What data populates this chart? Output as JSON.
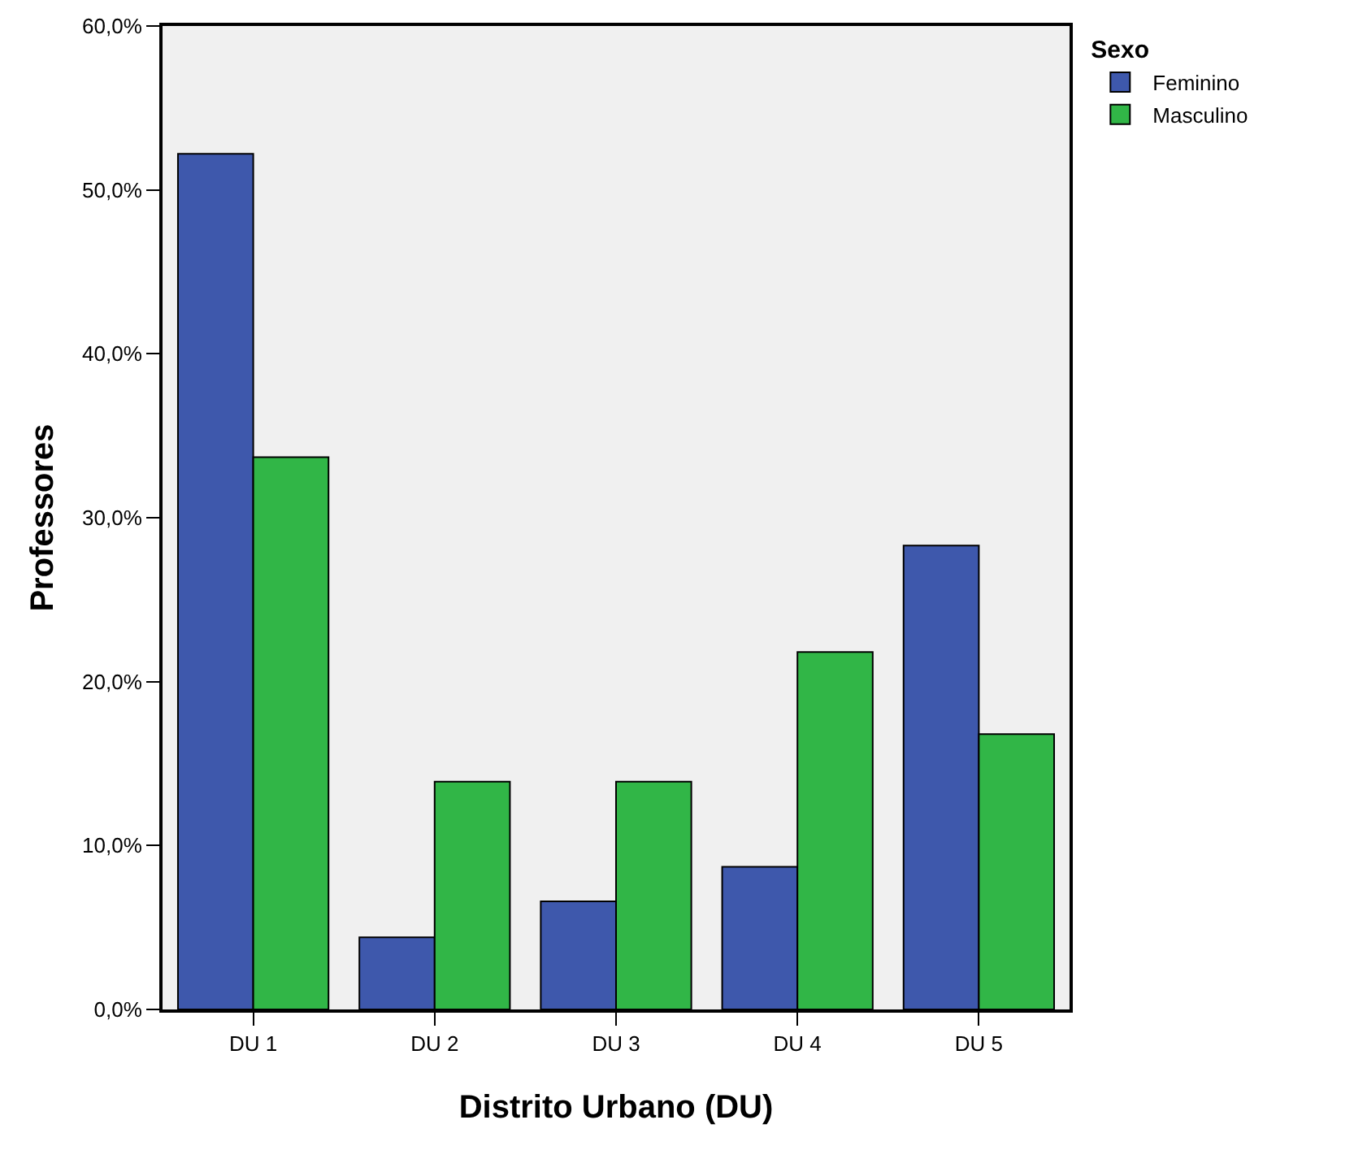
{
  "chart_data": {
    "type": "bar",
    "xlabel": "Distrito Urbano (DU)",
    "ylabel": "Professores",
    "legend_title": "Sexo",
    "categories": [
      "DU 1",
      "DU 2",
      "DU 3",
      "DU 4",
      "DU 5"
    ],
    "series": [
      {
        "name": "Feminino",
        "color": "#3e58ac",
        "values": [
          52.2,
          4.4,
          6.6,
          8.7,
          28.3
        ]
      },
      {
        "name": "Masculino",
        "color": "#31b647",
        "values": [
          33.7,
          13.9,
          13.9,
          21.8,
          16.8
        ]
      }
    ],
    "ylim": [
      0,
      60
    ],
    "yticks": [
      {
        "value": 0,
        "label": "0,0%"
      },
      {
        "value": 10,
        "label": "10,0%"
      },
      {
        "value": 20,
        "label": "20,0%"
      },
      {
        "value": 30,
        "label": "30,0%"
      },
      {
        "value": 40,
        "label": "40,0%"
      },
      {
        "value": 50,
        "label": "50,0%"
      },
      {
        "value": 60,
        "label": "60,0%"
      }
    ],
    "grid": false,
    "legend": "top right"
  }
}
